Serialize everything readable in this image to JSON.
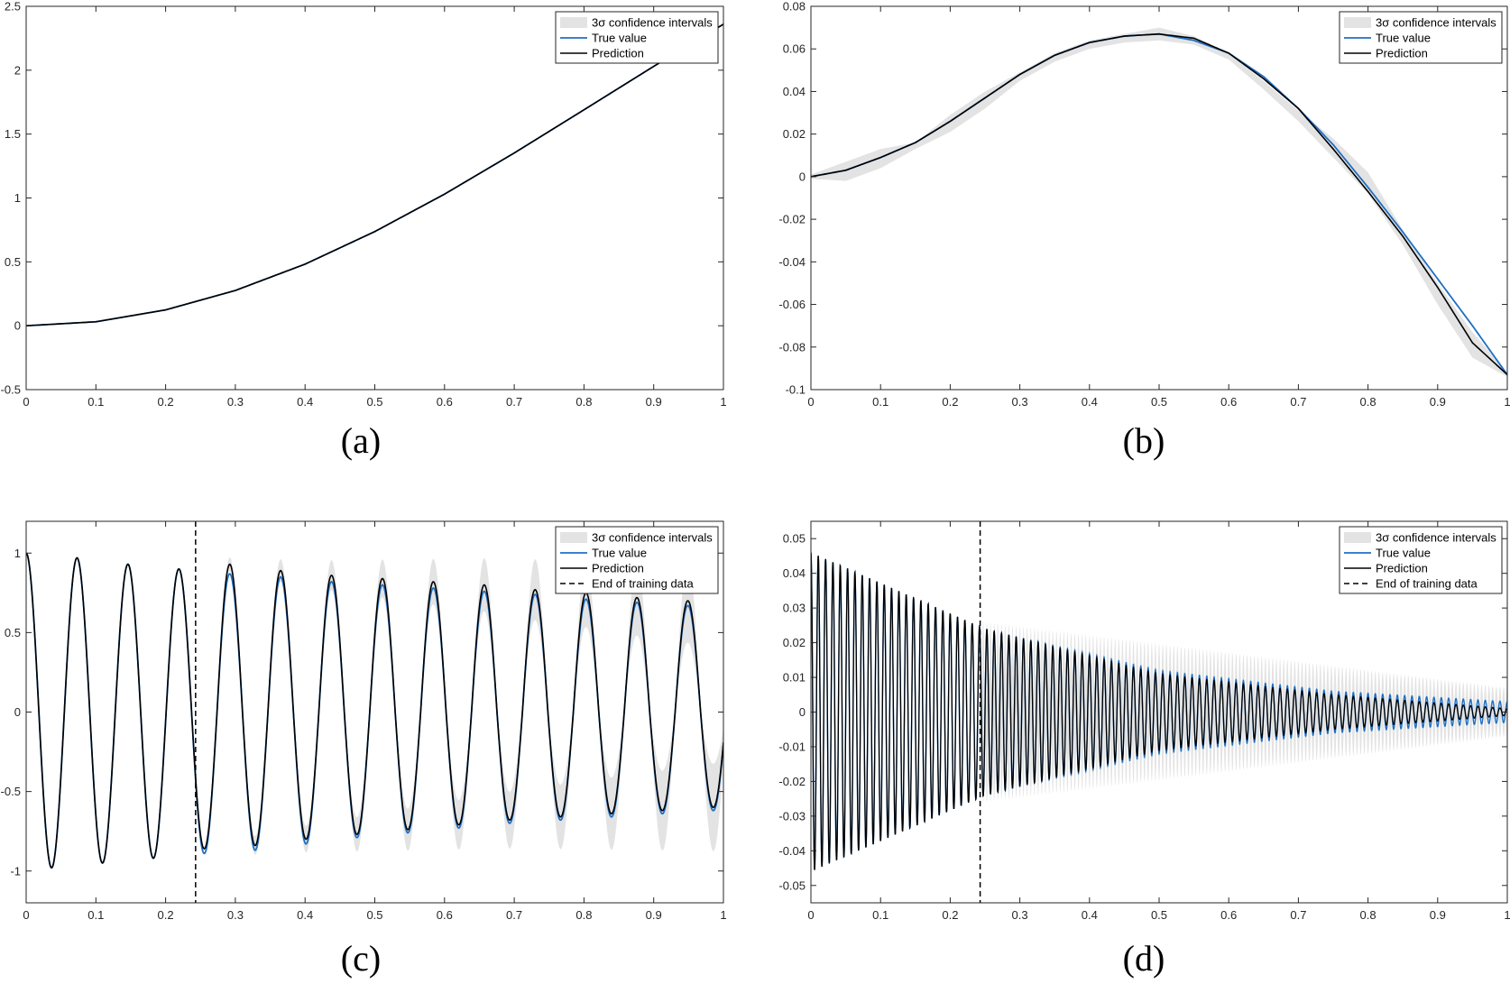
{
  "colors": {
    "band": "#e3e3e3",
    "true_value": "#1f6fc4",
    "prediction": "#000000",
    "axes": "#262626"
  },
  "chart_data": [
    {
      "panel": "a",
      "caption": "(a)",
      "type": "line",
      "xlim": [
        0,
        1
      ],
      "ylim": [
        -0.5,
        2.5
      ],
      "xticks": [
        "0",
        "0.1",
        "0.2",
        "0.3",
        "0.4",
        "0.5",
        "0.6",
        "0.7",
        "0.8",
        "0.9",
        "1"
      ],
      "yticks": [
        "-0.5",
        "0",
        "0.5",
        "1",
        "1.5",
        "2",
        "2.5"
      ],
      "legend": {
        "position": "top-right",
        "entries": [
          "3σ confidence intervals",
          "True value",
          "Prediction"
        ]
      },
      "series": [
        {
          "name": "3σ confidence intervals",
          "kind": "band",
          "x": [
            0,
            0.1,
            0.2,
            0.3,
            0.4,
            0.5,
            0.6,
            0.7,
            0.8,
            0.9,
            1
          ],
          "lower": [
            0,
            0.031,
            0.124,
            0.276,
            0.482,
            0.737,
            1.03,
            1.352,
            1.69,
            2.03,
            2.36
          ],
          "upper": [
            0,
            0.031,
            0.124,
            0.276,
            0.482,
            0.737,
            1.03,
            1.352,
            1.69,
            2.03,
            2.36
          ]
        },
        {
          "name": "True value",
          "kind": "line",
          "x": [
            0,
            0.1,
            0.2,
            0.3,
            0.4,
            0.5,
            0.6,
            0.7,
            0.8,
            0.9,
            1
          ],
          "y": [
            0,
            0.031,
            0.124,
            0.276,
            0.482,
            0.737,
            1.03,
            1.352,
            1.69,
            2.03,
            2.36
          ]
        },
        {
          "name": "Prediction",
          "kind": "line",
          "x": [
            0,
            0.1,
            0.2,
            0.3,
            0.4,
            0.5,
            0.6,
            0.7,
            0.8,
            0.9,
            1
          ],
          "y": [
            0,
            0.031,
            0.124,
            0.276,
            0.482,
            0.737,
            1.03,
            1.352,
            1.69,
            2.03,
            2.36
          ]
        }
      ]
    },
    {
      "panel": "b",
      "caption": "(b)",
      "type": "line",
      "xlim": [
        0,
        1
      ],
      "ylim": [
        -0.1,
        0.08
      ],
      "xticks": [
        "0",
        "0.1",
        "0.2",
        "0.3",
        "0.4",
        "0.5",
        "0.6",
        "0.7",
        "0.8",
        "0.9",
        "1"
      ],
      "yticks": [
        "-0.1",
        "-0.08",
        "-0.06",
        "-0.04",
        "-0.02",
        "0",
        "0.02",
        "0.04",
        "0.06",
        "0.08"
      ],
      "legend": {
        "position": "top-right",
        "entries": [
          "3σ confidence intervals",
          "True value",
          "Prediction"
        ]
      },
      "series": [
        {
          "name": "3σ confidence intervals",
          "kind": "band",
          "x": [
            0,
            0.05,
            0.1,
            0.15,
            0.2,
            0.25,
            0.3,
            0.35,
            0.4,
            0.45,
            0.5,
            0.55,
            0.6,
            0.65,
            0.7,
            0.75,
            0.8,
            0.85,
            0.9,
            0.95,
            1
          ],
          "lower": [
            -0.001,
            -0.002,
            0.004,
            0.013,
            0.021,
            0.032,
            0.045,
            0.054,
            0.06,
            0.063,
            0.064,
            0.062,
            0.055,
            0.041,
            0.026,
            0.009,
            -0.008,
            -0.032,
            -0.06,
            -0.085,
            -0.094
          ],
          "upper": [
            0.001,
            0.007,
            0.013,
            0.016,
            0.029,
            0.04,
            0.049,
            0.058,
            0.064,
            0.067,
            0.07,
            0.066,
            0.058,
            0.045,
            0.031,
            0.018,
            0.002,
            -0.025,
            -0.05,
            -0.073,
            -0.092
          ]
        },
        {
          "name": "True value",
          "kind": "line",
          "x": [
            0,
            0.05,
            0.1,
            0.15,
            0.2,
            0.25,
            0.3,
            0.35,
            0.4,
            0.45,
            0.5,
            0.55,
            0.6,
            0.65,
            0.7,
            0.75,
            0.8,
            0.85,
            0.9,
            0.95,
            1
          ],
          "y": [
            0,
            0.003,
            0.009,
            0.016,
            0.026,
            0.037,
            0.048,
            0.057,
            0.063,
            0.066,
            0.067,
            0.064,
            0.058,
            0.047,
            0.032,
            0.015,
            -0.005,
            -0.026,
            -0.048,
            -0.07,
            -0.093
          ]
        },
        {
          "name": "Prediction",
          "kind": "line",
          "x": [
            0,
            0.05,
            0.1,
            0.15,
            0.2,
            0.25,
            0.3,
            0.35,
            0.4,
            0.45,
            0.5,
            0.55,
            0.6,
            0.65,
            0.7,
            0.75,
            0.8,
            0.85,
            0.9,
            0.95,
            1
          ],
          "y": [
            0,
            0.003,
            0.009,
            0.016,
            0.026,
            0.037,
            0.048,
            0.057,
            0.063,
            0.066,
            0.067,
            0.065,
            0.058,
            0.046,
            0.032,
            0.013,
            -0.007,
            -0.028,
            -0.052,
            -0.078,
            -0.093
          ]
        }
      ]
    },
    {
      "panel": "c",
      "caption": "(c)",
      "type": "line",
      "xlim": [
        0,
        1
      ],
      "ylim": [
        -1.2,
        1.2
      ],
      "xticks": [
        "0",
        "0.1",
        "0.2",
        "0.3",
        "0.4",
        "0.5",
        "0.6",
        "0.7",
        "0.8",
        "0.9",
        "1"
      ],
      "yticks": [
        "-1",
        "-0.5",
        "0",
        "0.5",
        "1"
      ],
      "legend": {
        "position": "top-right",
        "entries": [
          "3σ confidence intervals",
          "True value",
          "Prediction",
          "End of training data"
        ]
      },
      "end_of_training_x": 0.243,
      "signal": {
        "period": 0.073,
        "peak_amplitude": [
          [
            0,
            1.0
          ],
          [
            0.243,
            0.91
          ],
          [
            1.0,
            0.7
          ]
        ],
        "trough_amplitude": [
          [
            0,
            -0.98
          ],
          [
            0.243,
            -0.91
          ],
          [
            1.0,
            -0.6
          ]
        ]
      },
      "series": [
        {
          "name": "3σ confidence intervals",
          "kind": "band",
          "x_range": [
            0.243,
            1
          ],
          "half_width": [
            [
              0.243,
              0.0
            ],
            [
              0.3,
              0.05
            ],
            [
              1.0,
              0.28
            ]
          ]
        },
        {
          "name": "True value",
          "kind": "line",
          "peaks_x": [
            0,
            0.073,
            0.146,
            0.219,
            0.292,
            0.365,
            0.438,
            0.511,
            0.584,
            0.657,
            0.73,
            0.803,
            0.876,
            0.949
          ],
          "peaks_y": [
            1.0,
            0.97,
            0.93,
            0.9,
            0.87,
            0.85,
            0.82,
            0.8,
            0.78,
            0.76,
            0.74,
            0.71,
            0.69,
            0.67
          ],
          "troughs_x": [
            0.036,
            0.109,
            0.182,
            0.255,
            0.328,
            0.401,
            0.474,
            0.547,
            0.62,
            0.693,
            0.766,
            0.839,
            0.912,
            0.985
          ],
          "troughs_y": [
            -0.98,
            -0.95,
            -0.92,
            -0.89,
            -0.87,
            -0.83,
            -0.79,
            -0.76,
            -0.73,
            -0.7,
            -0.68,
            -0.66,
            -0.64,
            -0.62
          ]
        },
        {
          "name": "Prediction",
          "kind": "line",
          "peaks_x": [
            0,
            0.073,
            0.146,
            0.219,
            0.292,
            0.365,
            0.438,
            0.511,
            0.584,
            0.657,
            0.73,
            0.803,
            0.876,
            0.949
          ],
          "peaks_y": [
            1.0,
            0.97,
            0.93,
            0.9,
            0.93,
            0.89,
            0.86,
            0.84,
            0.82,
            0.8,
            0.77,
            0.75,
            0.72,
            0.7
          ],
          "troughs_x": [
            0.036,
            0.109,
            0.182,
            0.255,
            0.328,
            0.401,
            0.474,
            0.547,
            0.62,
            0.693,
            0.766,
            0.839,
            0.912,
            0.985
          ],
          "troughs_y": [
            -0.98,
            -0.95,
            -0.92,
            -0.86,
            -0.84,
            -0.8,
            -0.77,
            -0.74,
            -0.71,
            -0.68,
            -0.66,
            -0.64,
            -0.62,
            -0.6
          ]
        }
      ]
    },
    {
      "panel": "d",
      "caption": "(d)",
      "type": "line",
      "xlim": [
        0,
        1
      ],
      "ylim": [
        -0.055,
        0.055
      ],
      "xticks": [
        "0",
        "0.1",
        "0.2",
        "0.3",
        "0.4",
        "0.5",
        "0.6",
        "0.7",
        "0.8",
        "0.9",
        "1"
      ],
      "yticks": [
        "-0.05",
        "-0.04",
        "-0.03",
        "-0.02",
        "-0.01",
        "0",
        "0.01",
        "0.02",
        "0.03",
        "0.04",
        "0.05"
      ],
      "legend": {
        "position": "top-right",
        "entries": [
          "3σ confidence intervals",
          "True value",
          "Prediction",
          "End of training data"
        ]
      },
      "end_of_training_x": 0.243,
      "signal": {
        "cycles": 95,
        "amplitude_start": 0.046,
        "amplitude_decay_per_unit_x": 2.6
      },
      "series": [
        {
          "name": "3σ confidence intervals",
          "kind": "band",
          "x_range": [
            0.243,
            1
          ],
          "upper_at": [
            [
              0.25,
              0.026
            ],
            [
              1.0,
              0.007
            ]
          ]
        },
        {
          "name": "True value",
          "kind": "line",
          "envelope_x": [
            0,
            0.25,
            0.5,
            0.75,
            1.0
          ],
          "envelope_y": [
            0.046,
            0.024,
            0.012,
            0.006,
            0.003
          ]
        },
        {
          "name": "Prediction",
          "kind": "line",
          "envelope_x": [
            0,
            0.25,
            0.5,
            0.75,
            1.0
          ],
          "envelope_y": [
            0.046,
            0.024,
            0.011,
            0.005,
            0.001
          ]
        }
      ]
    }
  ]
}
